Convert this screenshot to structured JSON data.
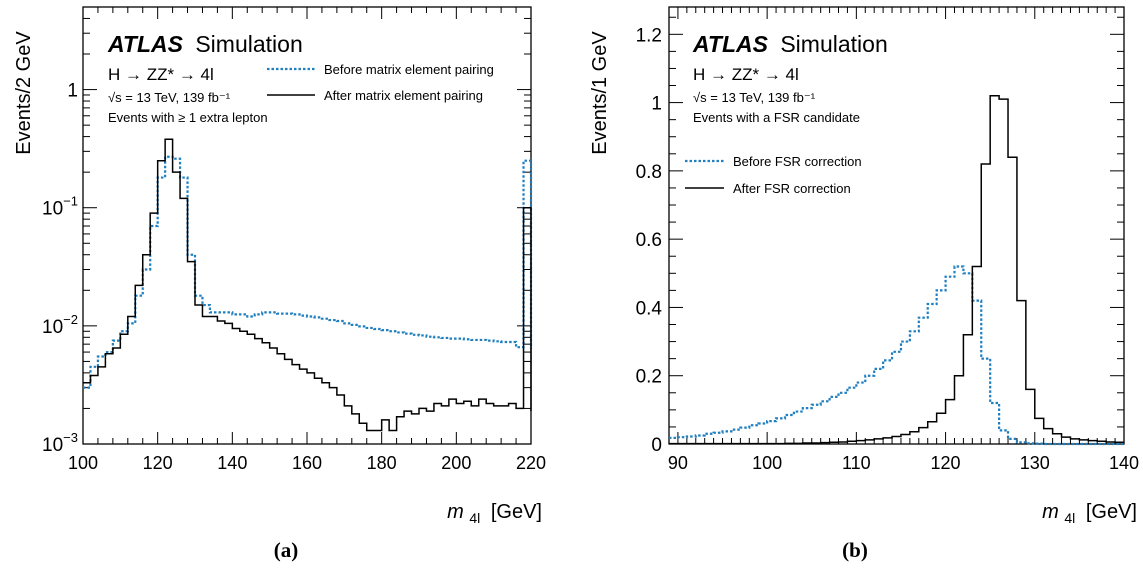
{
  "colors": {
    "before": "#1f7fbf",
    "after": "#000000"
  },
  "chart_data": [
    {
      "type": "line",
      "panel_label": "(a)",
      "brand": "ATLAS",
      "brand_suffix": "Simulation",
      "process": "H → ZZ* → 4l",
      "energy": "√s = 13 TeV, 139 fb⁻¹",
      "selection": "Events with ≥ 1 extra lepton",
      "ylabel": "Events/2 GeV",
      "xlabel_main": "m",
      "xlabel_sub": "4l",
      "xlabel_unit": "[GeV]",
      "xlim": [
        100,
        220
      ],
      "ylim": [
        0.001,
        5
      ],
      "yscale": "log",
      "xticks": [
        100,
        120,
        140,
        160,
        180,
        200,
        220
      ],
      "xtick_labels": [
        "100",
        "120",
        "140",
        "160",
        "180",
        "200",
        "220"
      ],
      "yticks_major": [
        0.001,
        0.01,
        0.1,
        1
      ],
      "ytick_labels": [
        {
          "base": "10",
          "exp": "−3"
        },
        {
          "base": "10",
          "exp": "−2"
        },
        {
          "base": "10",
          "exp": "−1"
        },
        {
          "base": "1",
          "exp": ""
        }
      ],
      "legend_position": "top-right",
      "bin_edges_start": 100,
      "bin_width": 2,
      "series": [
        {
          "name": "Before matrix element pairing",
          "style": "dotted",
          "values": [
            0.003,
            0.0045,
            0.0055,
            0.006,
            0.0075,
            0.009,
            0.0105,
            0.018,
            0.03,
            0.07,
            0.18,
            0.27,
            0.26,
            0.18,
            0.04,
            0.018,
            0.015,
            0.013,
            0.013,
            0.013,
            0.0125,
            0.0125,
            0.012,
            0.0125,
            0.013,
            0.013,
            0.0127,
            0.0127,
            0.0125,
            0.0122,
            0.012,
            0.0118,
            0.0115,
            0.0112,
            0.011,
            0.0105,
            0.0102,
            0.0099,
            0.0096,
            0.0094,
            0.0092,
            0.009,
            0.0088,
            0.0086,
            0.0084,
            0.0083,
            0.0081,
            0.008,
            0.0079,
            0.0078,
            0.0078,
            0.0077,
            0.0076,
            0.0076,
            0.0075,
            0.0074,
            0.0073,
            0.0073,
            0.0066,
            0.25
          ],
          "values_end": 0.0064
        },
        {
          "name": "After matrix element pairing",
          "style": "solid",
          "values": [
            0.0033,
            0.0038,
            0.0045,
            0.0058,
            0.0065,
            0.0085,
            0.012,
            0.022,
            0.04,
            0.09,
            0.25,
            0.38,
            0.2,
            0.12,
            0.035,
            0.015,
            0.012,
            0.012,
            0.011,
            0.0105,
            0.0095,
            0.009,
            0.0085,
            0.0078,
            0.0072,
            0.0065,
            0.0058,
            0.0052,
            0.0047,
            0.0043,
            0.004,
            0.0036,
            0.0033,
            0.003,
            0.0026,
            0.0021,
            0.0018,
            0.0015,
            0.0013,
            0.0013,
            0.0016,
            0.0013,
            0.0017,
            0.0019,
            0.0018,
            0.002,
            0.0019,
            0.0022,
            0.0021,
            0.0024,
            0.0022,
            0.0023,
            0.0021,
            0.0024,
            0.0022,
            0.0021,
            0.0021,
            0.0022,
            0.002,
            0.1
          ],
          "values_end": 0.0019
        }
      ]
    },
    {
      "type": "line",
      "panel_label": "(b)",
      "brand": "ATLAS",
      "brand_suffix": "Simulation",
      "process": "H → ZZ* → 4l",
      "energy": "√s = 13 TeV, 139 fb⁻¹",
      "selection": "Events with a FSR candidate",
      "ylabel": "Events/1 GeV",
      "xlabel_main": "m",
      "xlabel_sub": "4l",
      "xlabel_unit": "[GeV]",
      "xlim": [
        89,
        140
      ],
      "ylim": [
        0,
        1.28
      ],
      "yscale": "linear",
      "xticks": [
        90,
        100,
        110,
        120,
        130,
        140
      ],
      "xtick_labels": [
        "90",
        "100",
        "110",
        "120",
        "130",
        "140"
      ],
      "yticks_major": [
        0,
        0.2,
        0.4,
        0.6,
        0.8,
        1,
        1.2
      ],
      "ytick_labels": [
        "0",
        "0.2",
        "0.4",
        "0.6",
        "0.8",
        "1",
        "1.2"
      ],
      "legend_position": "upper-left",
      "bin_edges_start": 89,
      "bin_width": 1,
      "series": [
        {
          "name": "Before FSR correction",
          "style": "dotted",
          "values": [
            0.018,
            0.02,
            0.022,
            0.025,
            0.03,
            0.033,
            0.037,
            0.042,
            0.048,
            0.055,
            0.06,
            0.067,
            0.075,
            0.085,
            0.095,
            0.105,
            0.115,
            0.125,
            0.138,
            0.15,
            0.165,
            0.18,
            0.2,
            0.22,
            0.245,
            0.27,
            0.3,
            0.33,
            0.37,
            0.41,
            0.45,
            0.49,
            0.52,
            0.5,
            0.42,
            0.25,
            0.12,
            0.04,
            0.015,
            0.005,
            0.002,
            0.001,
            0,
            0,
            0,
            0,
            0,
            0,
            0,
            0,
            0
          ]
        },
        {
          "name": "After FSR correction",
          "style": "solid",
          "values": [
            0.001,
            0.001,
            0.001,
            0.001,
            0.001,
            0.001,
            0.001,
            0.001,
            0.001,
            0.001,
            0.001,
            0.001,
            0.001,
            0.002,
            0.002,
            0.003,
            0.003,
            0.004,
            0.005,
            0.006,
            0.008,
            0.01,
            0.012,
            0.015,
            0.018,
            0.022,
            0.028,
            0.036,
            0.048,
            0.065,
            0.09,
            0.13,
            0.2,
            0.32,
            0.52,
            0.82,
            1.02,
            1.01,
            0.84,
            0.42,
            0.16,
            0.075,
            0.045,
            0.03,
            0.02,
            0.015,
            0.012,
            0.01,
            0.008,
            0.006,
            0.005
          ]
        }
      ]
    }
  ]
}
